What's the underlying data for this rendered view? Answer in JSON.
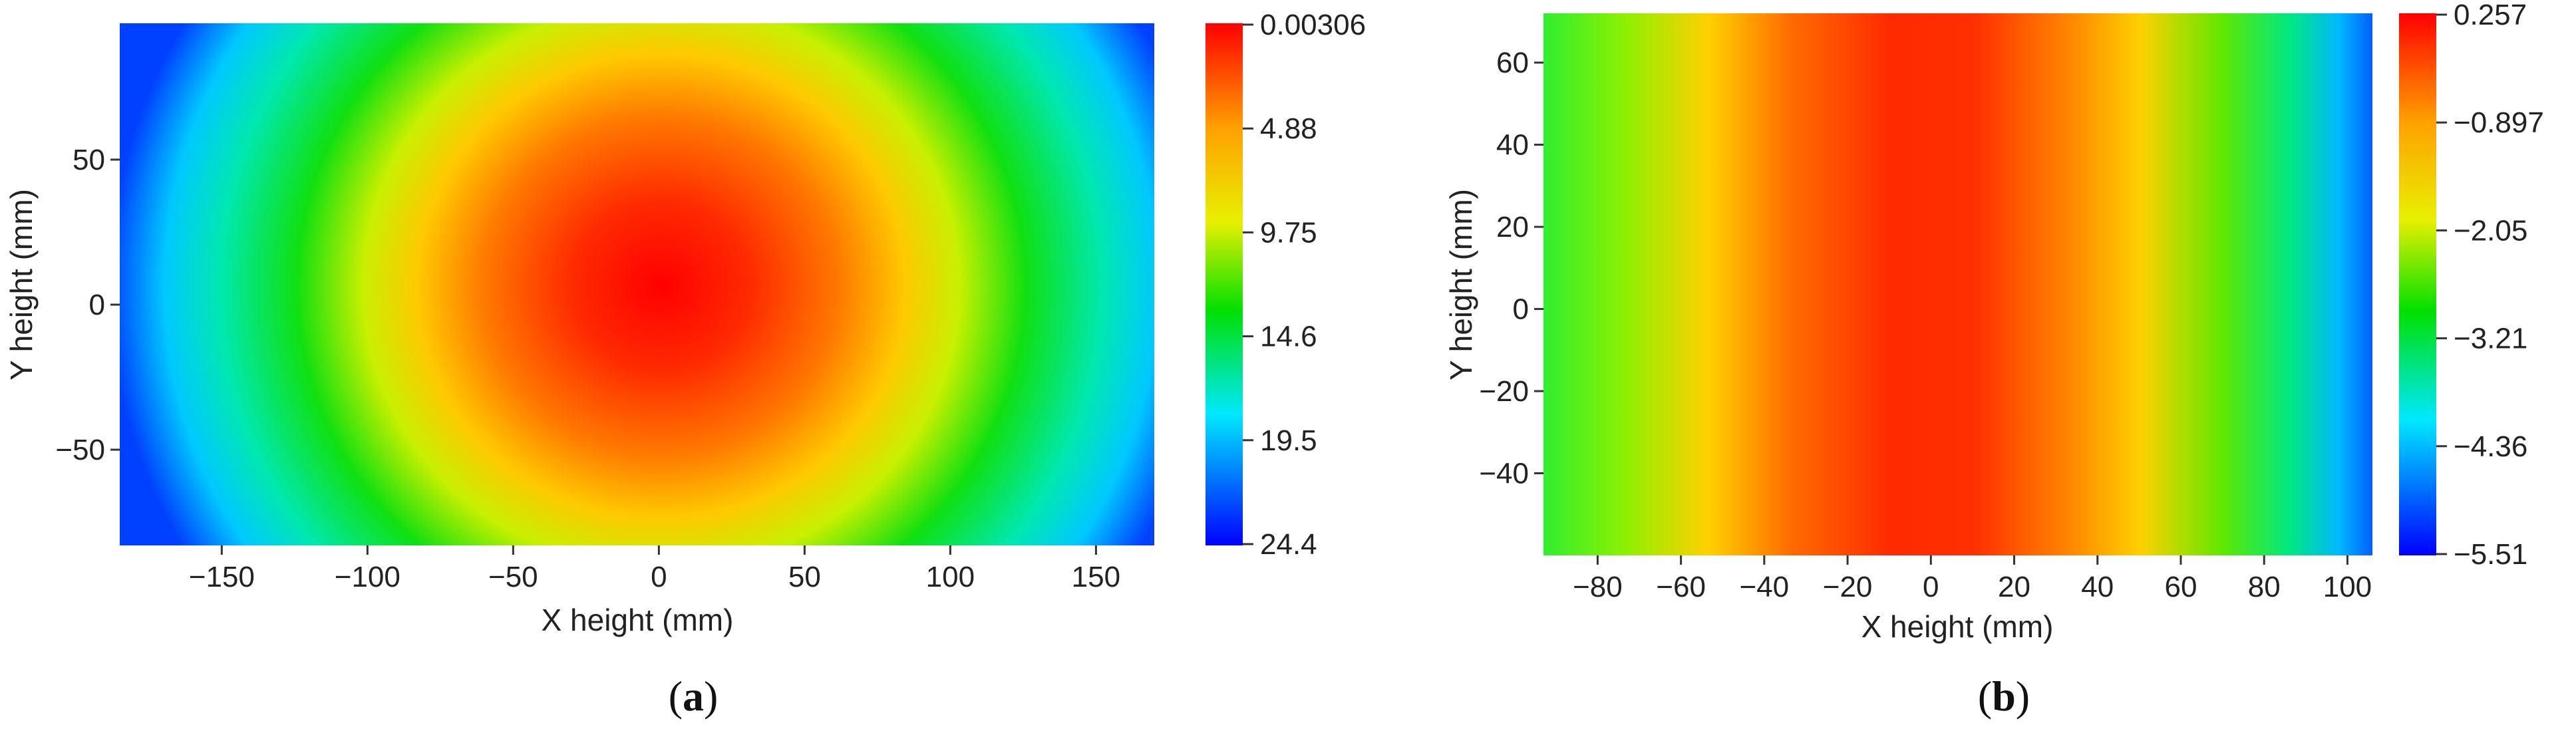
{
  "chart_data": [
    {
      "type": "heatmap",
      "panel_label": "a",
      "xlabel": "X height (mm)",
      "ylabel": "Y height (mm)",
      "xlim": [
        -185,
        170
      ],
      "ylim": [
        -83,
        97
      ],
      "x_ticks": [
        -150,
        -100,
        -50,
        0,
        50,
        100,
        150
      ],
      "y_ticks": [
        -50,
        0,
        50
      ],
      "colorbar": {
        "ticks": [
          "0.00306",
          "4.88",
          "9.75",
          "14.6",
          "19.5",
          "24.4"
        ],
        "min": 0.00306,
        "max": 24.4,
        "direction": "red-top-to-blue-bottom"
      },
      "field": {
        "center_x": 0,
        "center_y": 0,
        "shape": "elliptical",
        "min_value": 0.00306,
        "max_value": 24.4
      }
    },
    {
      "type": "heatmap",
      "panel_label": "b",
      "xlabel": "X height (mm)",
      "ylabel": "Y height (mm)",
      "xlim": [
        -93,
        106
      ],
      "ylim": [
        -60,
        72
      ],
      "x_ticks": [
        -80,
        -60,
        -40,
        -20,
        0,
        20,
        40,
        60,
        80,
        100
      ],
      "y_ticks": [
        -40,
        -20,
        0,
        20,
        40,
        60
      ],
      "colorbar": {
        "ticks": [
          "0.257",
          "-0.897",
          "-2.05",
          "-3.21",
          "-4.36",
          "-5.51"
        ],
        "min": -5.51,
        "max": 0.257,
        "direction": "red-top-to-blue-bottom"
      },
      "field": {
        "center_x": 0,
        "shape": "vertical-bands",
        "min_value": -5.51,
        "max_value": 0.257
      }
    }
  ],
  "colors": {
    "red": "#ff0000",
    "orange": "#ff8c00",
    "yellow": "#ffd400",
    "green": "#00e000",
    "cyan": "#00e5ff",
    "blue": "#0000ff"
  }
}
